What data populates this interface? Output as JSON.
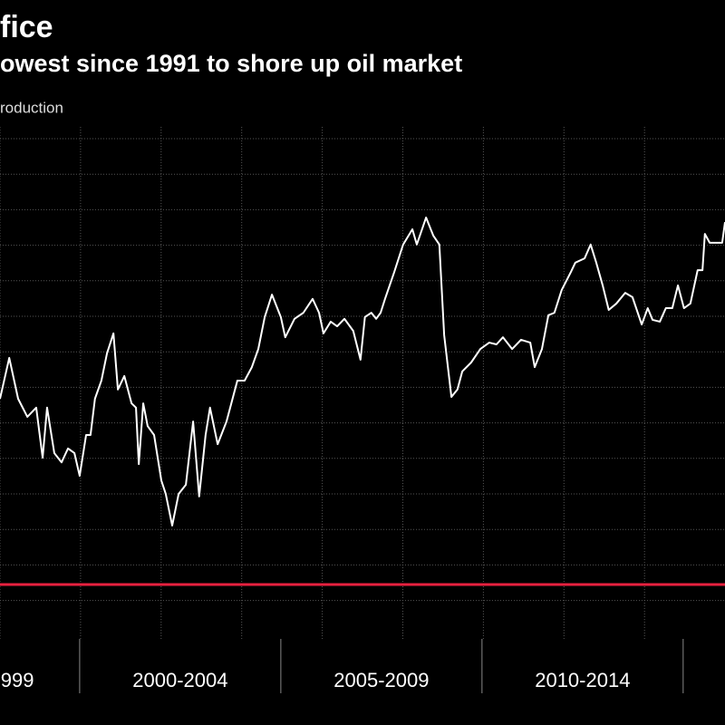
{
  "chart_data": {
    "type": "line",
    "title": "fice",
    "subtitle": "owest since 1991 to shore up oil market",
    "unit_label": "roduction",
    "xlim": [
      1998.02,
      2016.04
    ],
    "ylim": [
      0,
      14.3
    ],
    "xticks": [
      2000,
      2005,
      2010,
      2015
    ],
    "period_labels": [
      {
        "value": 1998.45,
        "label": "999"
      },
      {
        "value": 2002.5,
        "label": "2000-2004"
      },
      {
        "value": 2007.5,
        "label": "2005-2009"
      },
      {
        "value": 2012.5,
        "label": "2010-2014"
      }
    ],
    "grid": true,
    "series": [
      {
        "color": "#ffffff",
        "x": [
          1998.02,
          1998.25,
          1998.47,
          1998.7,
          1998.92,
          1999.08,
          1999.19,
          1999.37,
          1999.55,
          1999.71,
          1999.87,
          2000.0,
          2000.16,
          2000.27,
          2000.38,
          2000.54,
          2000.68,
          2000.84,
          2000.95,
          2001.11,
          2001.29,
          2001.4,
          2001.47,
          2001.58,
          2001.69,
          2001.85,
          2002.03,
          2002.14,
          2002.3,
          2002.46,
          2002.64,
          2002.82,
          2002.97,
          2003.13,
          2003.24,
          2003.43,
          2003.65,
          2003.92,
          2004.1,
          2004.28,
          2004.44,
          2004.6,
          2004.78,
          2005.0,
          2005.11,
          2005.34,
          2005.56,
          2005.79,
          2005.95,
          2006.06,
          2006.24,
          2006.4,
          2006.58,
          2006.8,
          2006.98,
          2007.09,
          2007.25,
          2007.37,
          2007.48,
          2007.59,
          2007.82,
          2008.04,
          2008.27,
          2008.38,
          2008.61,
          2008.79,
          2008.94,
          2009.06,
          2009.24,
          2009.39,
          2009.51,
          2009.73,
          2009.96,
          2010.18,
          2010.36,
          2010.52,
          2010.75,
          2010.97,
          2011.2,
          2011.31,
          2011.49,
          2011.65,
          2011.8,
          2011.98,
          2012.21,
          2012.32,
          2012.55,
          2012.7,
          2012.84,
          2013.0,
          2013.15,
          2013.34,
          2013.56,
          2013.74,
          2013.97,
          2014.12,
          2014.24,
          2014.42,
          2014.57,
          2014.73,
          2014.87,
          2015.02,
          2015.18,
          2015.36,
          2015.48,
          2015.54,
          2015.66,
          2015.81,
          2015.97,
          2016.04
        ],
        "values": [
          6.76,
          7.91,
          6.76,
          6.25,
          6.51,
          5.1,
          6.51,
          5.23,
          4.97,
          5.36,
          5.23,
          4.59,
          5.74,
          5.74,
          6.76,
          7.27,
          8.04,
          8.6,
          7.02,
          7.4,
          6.63,
          6.51,
          4.92,
          6.63,
          5.99,
          5.74,
          4.46,
          4.08,
          3.19,
          4.08,
          4.34,
          6.12,
          4.01,
          5.74,
          6.51,
          5.48,
          6.12,
          7.27,
          7.27,
          7.65,
          8.16,
          9.06,
          9.69,
          9.06,
          8.49,
          9.01,
          9.18,
          9.57,
          9.18,
          8.6,
          8.93,
          8.8,
          9.01,
          8.67,
          7.86,
          9.06,
          9.18,
          9.01,
          9.18,
          9.57,
          10.33,
          11.1,
          11.53,
          11.1,
          11.86,
          11.35,
          11.1,
          8.55,
          6.81,
          7.02,
          7.53,
          7.78,
          8.16,
          8.34,
          8.29,
          8.49,
          8.16,
          8.42,
          8.34,
          7.65,
          8.16,
          9.11,
          9.18,
          9.82,
          10.33,
          10.59,
          10.71,
          11.1,
          10.59,
          9.95,
          9.26,
          9.44,
          9.74,
          9.62,
          8.85,
          9.31,
          8.98,
          8.93,
          9.31,
          9.31,
          9.95,
          9.31,
          9.44,
          10.38,
          10.38,
          11.4,
          11.15,
          11.15,
          11.15,
          11.73
        ]
      },
      {
        "color": "#e8213f",
        "x": [
          1998.02,
          2016.04
        ],
        "values": [
          1.53,
          1.53
        ]
      }
    ]
  }
}
